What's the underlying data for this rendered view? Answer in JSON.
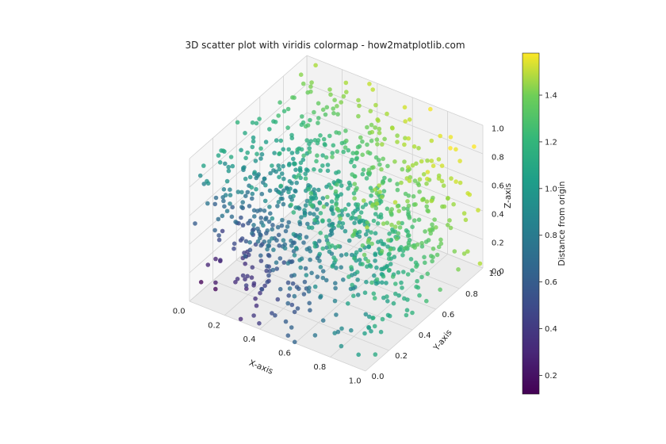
{
  "chart_data": {
    "type": "scatter3d",
    "title": "3D scatter plot with viridis colormap - how2matplotlib.com",
    "xlabel": "X-axis",
    "ylabel": "Y-axis",
    "zlabel": "Z-axis",
    "xlim": [
      0,
      1
    ],
    "ylim": [
      0,
      1
    ],
    "zlim": [
      0,
      1
    ],
    "xticks": [
      "0.0",
      "0.2",
      "0.4",
      "0.6",
      "0.8",
      "1.0"
    ],
    "yticks": [
      "0.0",
      "0.2",
      "0.4",
      "0.6",
      "0.8",
      "1.0"
    ],
    "zticks": [
      "0.0",
      "0.2",
      "0.4",
      "0.6",
      "0.8",
      "1.0"
    ],
    "grid": true,
    "colormap": "viridis",
    "color_value": "distance from origin",
    "point_count": 1000,
    "colorbar": {
      "label": "Distance from origin",
      "range": [
        0.12,
        1.58
      ],
      "ticks": [
        "0.2",
        "0.4",
        "0.6",
        "0.8",
        "1.0",
        "1.2",
        "1.4"
      ],
      "tick_values": [
        0.2,
        0.4,
        0.6,
        0.8,
        1.0,
        1.2,
        1.4
      ]
    }
  }
}
